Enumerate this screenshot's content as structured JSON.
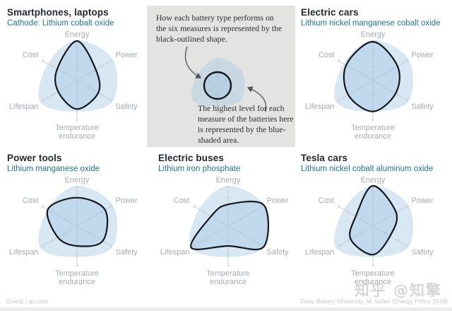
{
  "colors": {
    "title": "#24282f",
    "subtitle_teal": "#1b7a8c",
    "axis_line": "#c8ccd0",
    "axis_label": "#a6abb0",
    "blue_fill": "rgba(176,208,232,0.50)",
    "shape_fill": "rgba(150,193,224,0.35)",
    "shape_stroke": "#14171c",
    "box_bg": "#e3e3e1",
    "arrow": "#555555"
  },
  "explainer": {
    "text_top": "How each battery type performs on the six measures is represented by the black-outlined shape.",
    "text_bottom": "The highest level for each measure of the batteries here is represented by the blue-shaded area."
  },
  "footer": {
    "left": "Quartz | qz.com",
    "right": "Data: Battery University, M. Safari (Energy Policy 2018)"
  },
  "watermark": "知乎 @知擎",
  "chart_data": {
    "type": "radar",
    "axes": [
      "Energy",
      "Power",
      "Safety",
      "Temperature endurance",
      "Lifespan",
      "Cost"
    ],
    "scale_note": "values are fractions of axis length (0 = center, 1 = axis end)",
    "max_envelope_name": "Highest level of these batteries (blue-shaded area)",
    "max_envelope": [
      1.02,
      1.05,
      1.04,
      0.78,
      1.08,
      0.85
    ],
    "charts": [
      {
        "title": "Smartphones, laptops",
        "subtitle": "Cathode: Lithium cobalt oxide",
        "values": [
          1.0,
          0.55,
          0.62,
          0.72,
          0.55,
          0.58
        ]
      },
      {
        "title": "Electric cars",
        "subtitle": "Lithium nickel manganese cobalt oxide",
        "values": [
          0.98,
          0.72,
          0.66,
          0.78,
          0.72,
          0.78
        ]
      },
      {
        "title": "Power tools",
        "subtitle": "Lithium manganese oxide",
        "values": [
          0.72,
          0.82,
          0.75,
          0.5,
          0.56,
          0.85
        ]
      },
      {
        "title": "Electric buses",
        "subtitle": "Lithium iron phosphate",
        "values": [
          0.55,
          1.05,
          1.04,
          0.5,
          1.08,
          0.5
        ]
      },
      {
        "title": "Tesla cars",
        "subtitle": "Lithium nickel cobalt aluminum oxide",
        "values": [
          1.02,
          0.68,
          0.5,
          0.72,
          0.65,
          0.5
        ]
      }
    ],
    "mini": {
      "circle_fraction": 0.5
    }
  }
}
